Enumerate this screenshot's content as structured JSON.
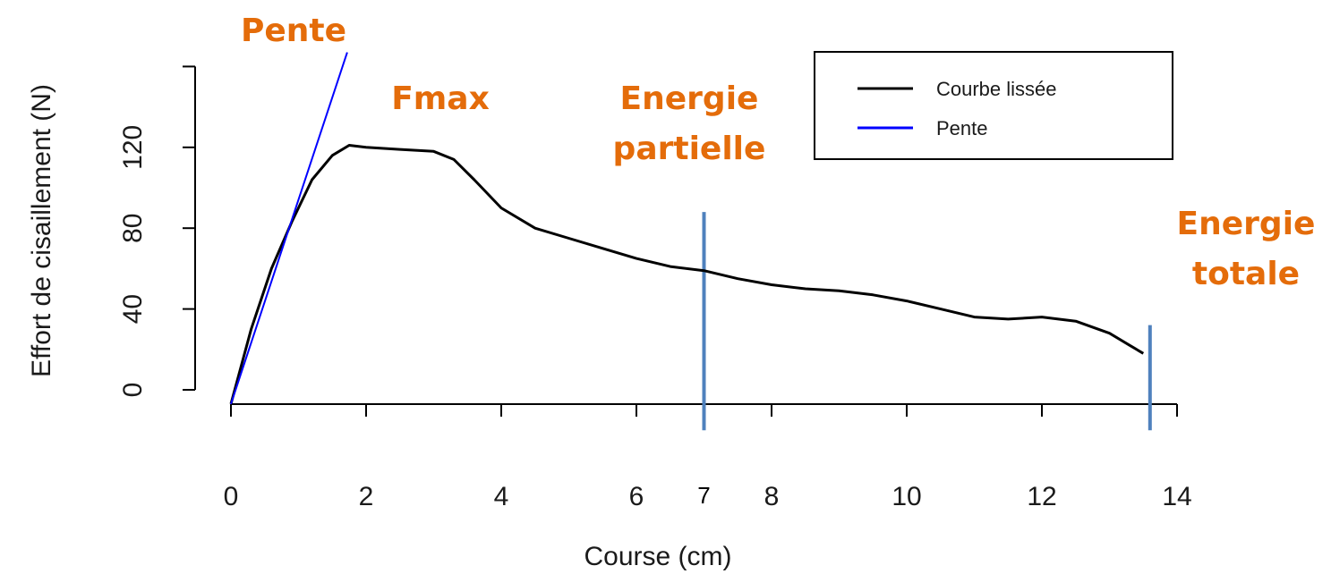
{
  "chart_data": {
    "type": "line",
    "xlabel": "Course (cm)",
    "ylabel": "Effort de cisaillement (N)",
    "xlim": [
      0,
      14
    ],
    "ylim": [
      -6,
      160
    ],
    "x_ticks": [
      0,
      2,
      4,
      6,
      8,
      10,
      12,
      14
    ],
    "y_ticks": [
      0,
      40,
      80,
      120
    ],
    "extra_x_ticks": [
      {
        "label": "7",
        "x": 7
      }
    ],
    "grid": false,
    "legend_position": "top-right",
    "legend": [
      {
        "label": "Courbe lissée",
        "color": "#000000"
      },
      {
        "label": "Pente",
        "color": "#0000ff"
      }
    ],
    "series": [
      {
        "name": "Courbe lissée",
        "color": "#000000",
        "x": [
          0,
          0.3,
          0.6,
          0.9,
          1.2,
          1.5,
          1.75,
          2.0,
          2.5,
          3.0,
          3.3,
          3.6,
          4.0,
          4.5,
          5.0,
          5.5,
          6.0,
          6.5,
          7.0,
          7.5,
          8.0,
          8.5,
          9.0,
          9.5,
          10.0,
          10.5,
          11.0,
          11.5,
          12.0,
          12.5,
          13.0,
          13.3,
          13.5
        ],
        "y": [
          -7,
          30,
          60,
          83,
          104,
          116,
          121,
          120,
          119,
          118,
          114,
          104,
          90,
          80,
          75,
          70,
          65,
          61,
          59,
          55,
          52,
          50,
          49,
          47,
          44,
          40,
          36,
          35,
          36,
          34,
          28,
          22,
          18
        ]
      },
      {
        "name": "Pente",
        "color": "#0000ff",
        "x": [
          0,
          1.72
        ],
        "y": [
          -7,
          167
        ]
      }
    ],
    "vertical_markers": [
      {
        "x": 7,
        "y_from": -20,
        "y_to": 88,
        "color": "#4f81bd"
      },
      {
        "x": 13.6,
        "y_from": -20,
        "y_to": 32,
        "color": "#4f81bd"
      }
    ],
    "annotations": [
      {
        "lines": [
          "Pente"
        ],
        "color": "#e46c0a"
      },
      {
        "lines": [
          "Fmax"
        ],
        "color": "#e46c0a"
      },
      {
        "lines": [
          "Energie",
          "partielle"
        ],
        "color": "#e46c0a"
      },
      {
        "lines": [
          "Energie",
          "totale"
        ],
        "color": "#e46c0a"
      }
    ]
  }
}
